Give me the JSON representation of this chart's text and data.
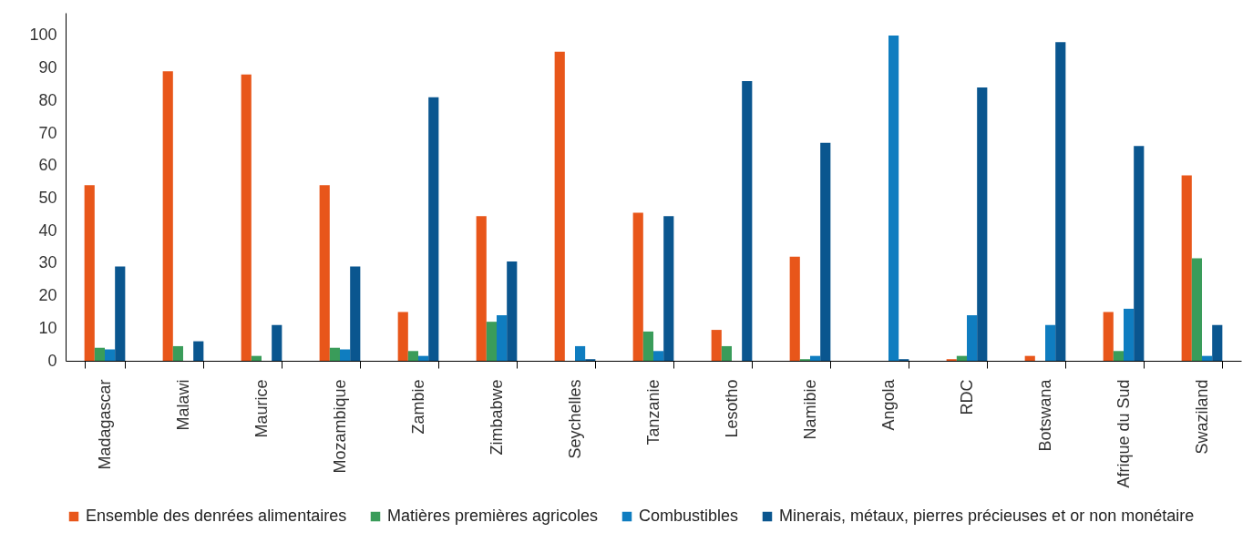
{
  "chart_data": {
    "type": "bar",
    "categories": [
      "Madagascar",
      "Malawi",
      "Maurice",
      "Mozambique",
      "Zambie",
      "Zimbabwe",
      "Seychelles",
      "Tanzanie",
      "Lesotho",
      "Namibie",
      "Angola",
      "RDC",
      "Botswana",
      "Afrique du Sud",
      "Swaziland"
    ],
    "series": [
      {
        "name": "Ensemble des denrées alimentaires",
        "color": "#e8561a",
        "values": [
          54,
          89,
          88,
          54,
          15,
          44.5,
          95,
          45.5,
          9.5,
          32,
          0,
          0.5,
          1.5,
          15,
          57
        ]
      },
      {
        "name": "Matières premières agricoles",
        "color": "#3a9c5a",
        "values": [
          4,
          4.5,
          1.5,
          4,
          3,
          12,
          0,
          9,
          4.5,
          0.5,
          0,
          1.5,
          0,
          3,
          31.5
        ]
      },
      {
        "name": "Combustibles",
        "color": "#0f7dc0",
        "values": [
          3.5,
          0,
          0,
          3.5,
          1.5,
          14,
          4.5,
          3,
          0,
          1.5,
          100,
          14,
          11,
          16,
          1.5
        ]
      },
      {
        "name": "Minerais, métaux, pierres précieuses et or non monétaire",
        "color": "#0a568f",
        "values": [
          29,
          6,
          11,
          29,
          81,
          30.5,
          0.5,
          44.5,
          86,
          67,
          0.5,
          84,
          98,
          66,
          11
        ]
      }
    ],
    "ylim": [
      0,
      107
    ],
    "yticks": [
      0,
      10,
      20,
      30,
      40,
      50,
      60,
      70,
      80,
      90,
      100
    ],
    "legend": "bottom"
  }
}
